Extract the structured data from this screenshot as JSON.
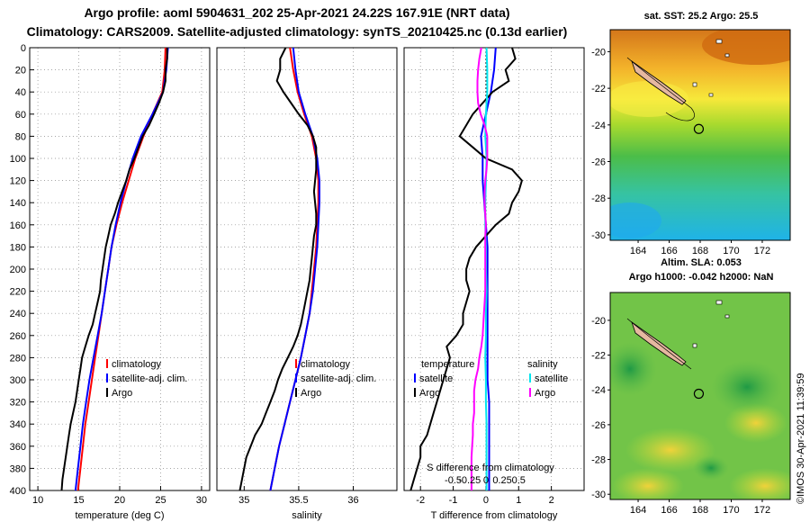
{
  "header": {
    "title_line1": "Argo profile: aoml 5904631_202 25-Apr-2021 24.22S 167.91E (NRT data)",
    "title_line2": "Climatology: CARS2009. Satellite-adjusted climatology: synTS_20210425.nc (0.13d earlier)"
  },
  "maps": {
    "sst_title": "sat. SST: 25.2 Argo: 25.5",
    "sla_title_line1": "Altim. SLA: 0.053",
    "sla_title_line2": "Argo h1000: -0.042 h2000: NaN",
    "lat_ticks": [
      -20,
      -22,
      -24,
      -26,
      -28,
      -30
    ],
    "lon_ticks": [
      164,
      166,
      168,
      170,
      172
    ],
    "argo_lon": 167.91,
    "argo_lat": -24.22
  },
  "credit": "©IMOS 30-Apr-2021 11:39:59",
  "colors": {
    "climatology": "#ff0000",
    "satellite": "#0000ff",
    "argo": "#000000",
    "sal_satellite": "#00e5ee",
    "sal_argo": "#ff00ff"
  },
  "chart_data": [
    {
      "type": "line",
      "title": "",
      "xlabel": "temperature (deg C)",
      "ylabel": "",
      "xlim": [
        9,
        31
      ],
      "ylim": [
        400,
        0
      ],
      "x_ticks": [
        10,
        15,
        20,
        25,
        30
      ],
      "y_ticks": [
        0,
        20,
        40,
        60,
        80,
        100,
        120,
        140,
        160,
        180,
        200,
        220,
        240,
        260,
        280,
        300,
        320,
        340,
        360,
        380,
        400
      ],
      "legend": [
        "climatology",
        "satellite-adj. clim.",
        "Argo"
      ],
      "series": [
        {
          "name": "climatology",
          "depth": [
            0,
            20,
            40,
            60,
            80,
            100,
            120,
            140,
            160,
            180,
            200,
            220,
            240,
            260,
            280,
            300,
            320,
            340,
            360,
            380,
            400
          ],
          "values": [
            25.6,
            25.5,
            25.2,
            24.0,
            22.9,
            21.9,
            21.1,
            20.3,
            19.6,
            19.0,
            18.6,
            18.2,
            17.8,
            17.4,
            17.0,
            16.6,
            16.2,
            15.8,
            15.5,
            15.2,
            14.9
          ]
        },
        {
          "name": "satellite-adj. clim.",
          "depth": [
            0,
            20,
            40,
            60,
            80,
            100,
            120,
            140,
            160,
            180,
            200,
            220,
            240,
            260,
            280,
            300,
            320,
            340,
            360,
            380,
            400
          ],
          "values": [
            25.9,
            25.7,
            25.3,
            24.0,
            22.6,
            21.6,
            20.8,
            20.1,
            19.5,
            19.0,
            18.6,
            18.2,
            17.8,
            17.3,
            16.8,
            16.3,
            15.9,
            15.5,
            15.2,
            14.9,
            14.6
          ]
        },
        {
          "name": "Argo",
          "depth": [
            0,
            10,
            20,
            30,
            40,
            50,
            60,
            70,
            80,
            90,
            100,
            110,
            120,
            130,
            140,
            150,
            160,
            170,
            180,
            190,
            200,
            210,
            220,
            230,
            240,
            250,
            260,
            270,
            280,
            290,
            300,
            310,
            320,
            330,
            340,
            350,
            360,
            370,
            380,
            390,
            400
          ],
          "values": [
            25.8,
            25.8,
            25.6,
            25.6,
            25.3,
            24.8,
            24.2,
            23.6,
            22.8,
            22.3,
            21.8,
            21.2,
            20.8,
            20.3,
            19.8,
            19.4,
            18.9,
            18.6,
            18.3,
            18.1,
            17.9,
            17.7,
            17.6,
            17.3,
            17.0,
            16.7,
            16.2,
            15.8,
            15.4,
            15.2,
            15.0,
            14.8,
            14.6,
            14.3,
            14.0,
            13.8,
            13.6,
            13.4,
            13.2,
            13.0,
            12.9
          ]
        }
      ]
    },
    {
      "type": "line",
      "title": "",
      "xlabel": "salinity",
      "ylabel": "",
      "xlim": [
        34.75,
        36.4
      ],
      "ylim": [
        400,
        0
      ],
      "x_ticks": [
        35,
        35.5,
        36
      ],
      "legend": [
        "climatology",
        "satellite-adj. clim.",
        "Argo"
      ],
      "series": [
        {
          "name": "climatology",
          "depth": [
            0,
            20,
            40,
            60,
            80,
            100,
            120,
            140,
            160,
            180,
            200,
            220,
            240,
            260,
            280,
            300,
            320,
            340,
            360,
            380,
            400
          ],
          "values": [
            35.42,
            35.45,
            35.49,
            35.55,
            35.62,
            35.66,
            35.68,
            35.68,
            35.67,
            35.66,
            35.64,
            35.62,
            35.6,
            35.56,
            35.52,
            35.47,
            35.42,
            35.37,
            35.32,
            35.28,
            35.24
          ]
        },
        {
          "name": "satellite-adj. clim.",
          "depth": [
            0,
            20,
            40,
            60,
            80,
            100,
            120,
            140,
            160,
            180,
            200,
            220,
            240,
            260,
            280,
            300,
            320,
            340,
            360,
            380,
            400
          ],
          "values": [
            35.45,
            35.47,
            35.5,
            35.56,
            35.63,
            35.67,
            35.69,
            35.69,
            35.68,
            35.67,
            35.65,
            35.63,
            35.6,
            35.56,
            35.52,
            35.47,
            35.42,
            35.37,
            35.32,
            35.28,
            35.24
          ]
        },
        {
          "name": "Argo",
          "depth": [
            0,
            10,
            20,
            30,
            40,
            50,
            60,
            70,
            80,
            90,
            100,
            110,
            120,
            130,
            140,
            150,
            160,
            170,
            180,
            190,
            200,
            210,
            220,
            230,
            240,
            250,
            260,
            270,
            280,
            290,
            300,
            310,
            320,
            330,
            340,
            350,
            360,
            370,
            380,
            390,
            400
          ],
          "values": [
            35.38,
            35.33,
            35.33,
            35.3,
            35.36,
            35.43,
            35.5,
            35.58,
            35.63,
            35.66,
            35.66,
            35.66,
            35.65,
            35.64,
            35.65,
            35.66,
            35.66,
            35.64,
            35.63,
            35.62,
            35.61,
            35.6,
            35.58,
            35.56,
            35.54,
            35.52,
            35.49,
            35.45,
            35.4,
            35.35,
            35.31,
            35.28,
            35.24,
            35.2,
            35.16,
            35.1,
            35.06,
            35.02,
            35.0,
            34.98,
            34.96
          ]
        }
      ]
    },
    {
      "type": "line",
      "title": "",
      "xlabel": "T difference from climatology",
      "ylabel": "",
      "xlim": [
        -2.5,
        3.0
      ],
      "ylim": [
        400,
        0
      ],
      "x_ticks": [
        -2,
        -1,
        0,
        1,
        2
      ],
      "secondary_axis": {
        "label": "S difference from climatology",
        "ticks": [
          -0.5,
          -0.25,
          0,
          0.25,
          0.5
        ],
        "scale_t_per_s": 2
      },
      "legend_left_title": "temperature",
      "legend_right_title": "salinity",
      "legend_left": [
        "satellite",
        "Argo"
      ],
      "legend_right": [
        "satellite",
        "Argo"
      ],
      "series": [
        {
          "name": "temperature satellite",
          "variable": "T",
          "depth": [
            0,
            20,
            40,
            60,
            80,
            100,
            120,
            140,
            160,
            180,
            200,
            220,
            240,
            260,
            280,
            300,
            320,
            340,
            360,
            380,
            400
          ],
          "values": [
            0.3,
            0.25,
            0.15,
            0.0,
            -0.15,
            -0.1,
            -0.1,
            -0.05,
            0.0,
            0.05,
            0.05,
            0.05,
            0.05,
            0.05,
            0.05,
            0.05,
            0.1,
            0.1,
            0.1,
            0.1,
            0.1
          ]
        },
        {
          "name": "temperature Argo",
          "variable": "T",
          "depth": [
            0,
            10,
            20,
            30,
            40,
            50,
            60,
            70,
            80,
            90,
            100,
            110,
            120,
            130,
            140,
            150,
            160,
            170,
            180,
            190,
            200,
            210,
            220,
            230,
            240,
            250,
            260,
            270,
            280,
            290,
            300,
            310,
            320,
            330,
            340,
            350,
            360,
            370,
            380,
            390,
            400
          ],
          "values": [
            0.8,
            0.9,
            0.6,
            0.7,
            0.2,
            -0.1,
            -0.4,
            -0.6,
            -0.8,
            -0.4,
            0.0,
            0.8,
            1.1,
            1.0,
            0.8,
            0.7,
            0.3,
            0.0,
            -0.3,
            -0.5,
            -0.6,
            -0.6,
            -0.5,
            -0.6,
            -0.7,
            -0.7,
            -0.9,
            -1.2,
            -1.1,
            -1.2,
            -1.3,
            -1.4,
            -1.5,
            -1.6,
            -1.7,
            -1.8,
            -2.0,
            -2.0,
            -2.1,
            -2.2,
            -2.3
          ]
        },
        {
          "name": "salinity satellite",
          "variable": "S",
          "depth": [
            0,
            20,
            40,
            60,
            80,
            100,
            120,
            140,
            160,
            180,
            200,
            220,
            240,
            260,
            280,
            300,
            320,
            340,
            360,
            380,
            400
          ],
          "values": [
            0.01,
            0.02,
            0.02,
            0.0,
            -0.01,
            0.01,
            0.0,
            -0.01,
            -0.01,
            0.0,
            0.0,
            0.01,
            0.0,
            0.0,
            -0.01,
            0.0,
            0.0,
            0.01,
            0.01,
            0.01,
            0.01
          ]
        },
        {
          "name": "salinity Argo",
          "variable": "S",
          "depth": [
            0,
            10,
            20,
            30,
            40,
            50,
            60,
            70,
            80,
            90,
            100,
            110,
            120,
            130,
            140,
            150,
            160,
            170,
            180,
            190,
            200,
            210,
            220,
            230,
            240,
            250,
            260,
            270,
            280,
            290,
            300,
            310,
            320,
            330,
            340,
            350,
            360,
            370,
            380,
            390,
            400
          ],
          "values": [
            -0.07,
            -0.1,
            -0.12,
            -0.13,
            -0.13,
            -0.12,
            -0.08,
            -0.02,
            0.02,
            0.02,
            0.02,
            0.01,
            -0.01,
            -0.02,
            -0.02,
            -0.01,
            0.0,
            -0.01,
            -0.01,
            -0.01,
            -0.01,
            -0.01,
            -0.01,
            -0.02,
            -0.03,
            -0.04,
            -0.05,
            -0.07,
            -0.1,
            -0.12,
            -0.16,
            -0.18,
            -0.18,
            -0.18,
            -0.2,
            -0.2,
            -0.21,
            -0.22,
            -0.22,
            -0.22,
            -0.22
          ]
        }
      ]
    }
  ]
}
